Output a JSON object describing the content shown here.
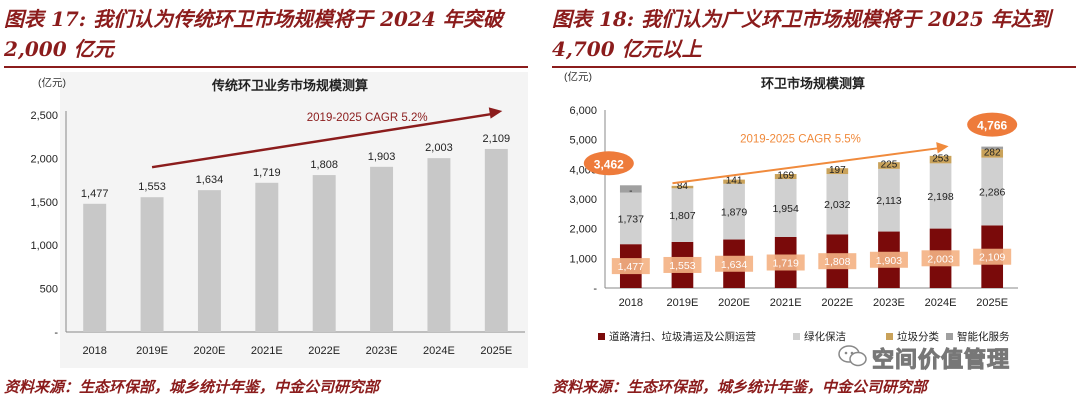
{
  "left": {
    "figure_title": "图表 17: 我们认为传统环卫市场规模将于 2024 年突破 2,000 亿元",
    "source": "资料来源：生态环保部，城乡统计年鉴，中金公司研究部"
  },
  "right": {
    "figure_title": "图表 18: 我们认为广义环卫市场规模将于 2025 年达到 4,700 亿元以上",
    "source": "资料来源：生态环保部，城乡统计年鉴，中金公司研究部"
  },
  "watermark": {
    "text": "空间价值管理"
  },
  "colors": {
    "title": "#8b1c1c",
    "bar_gray": "#c8c8c8",
    "dark_red": "#7a0a0a",
    "light_gray": "#d0d0d0",
    "tan": "#c9a25a",
    "mid_gray": "#a0a0a0",
    "arrow_red": "#8b1c1c",
    "arrow_orange": "#f08a3c",
    "label_orange": "#f4b183",
    "callout_orange": "#ee7b3b"
  },
  "chart_data": [
    {
      "type": "bar",
      "title": "传统环卫业务市场规模测算",
      "ylabel": "(亿元)",
      "categories": [
        "2018",
        "2019E",
        "2020E",
        "2021E",
        "2022E",
        "2023E",
        "2024E",
        "2025E"
      ],
      "values": [
        1477,
        1553,
        1634,
        1719,
        1808,
        1903,
        2003,
        2109
      ],
      "value_labels": [
        "1,477",
        "1,553",
        "1,634",
        "1,719",
        "1,808",
        "1,903",
        "2,003",
        "2,109"
      ],
      "ylim": [
        0,
        2500
      ],
      "yticks": [
        0,
        500,
        1000,
        1500,
        2000,
        2500
      ],
      "ytick_labels": [
        "-",
        "500",
        "1,000",
        "1,500",
        "2,000",
        "2,500"
      ],
      "annotation": "2019-2025 CAGR 5.2%",
      "arrow_from": [
        "2019E",
        1553
      ],
      "arrow_to": [
        "2025E",
        2109
      ],
      "grid": false
    },
    {
      "type": "bar",
      "stacked": true,
      "title": "环卫市场规模测算",
      "ylabel": "(亿元)",
      "categories": [
        "2018",
        "2019E",
        "2020E",
        "2021E",
        "2022E",
        "2023E",
        "2024E",
        "2025E"
      ],
      "series": [
        {
          "name": "道路清扫、垃圾清运及公厕运营",
          "values": [
            1477,
            1553,
            1634,
            1719,
            1808,
            1903,
            2003,
            2109
          ],
          "labels": [
            "1,477",
            "1,553",
            "1,634",
            "1,719",
            "1,808",
            "1,903",
            "2,003",
            "2,109"
          ]
        },
        {
          "name": "绿化保洁",
          "values": [
            1737,
            1807,
            1879,
            1954,
            2032,
            2113,
            2198,
            2286
          ],
          "labels": [
            "1,737",
            "1,807",
            "1,879",
            "1,954",
            "2,032",
            "2,113",
            "2,198",
            "2,286"
          ]
        },
        {
          "name": "垃圾分类",
          "values": [
            0,
            84,
            141,
            169,
            197,
            225,
            253,
            282
          ],
          "labels": [
            "-",
            "84",
            "141",
            "169",
            "197",
            "225",
            "253",
            "282"
          ]
        },
        {
          "name": "智能化服务",
          "values": [
            248,
            0,
            0,
            0,
            0,
            0,
            0,
            89
          ],
          "labels": [
            "",
            "",
            "",
            "",
            "",
            "",
            "",
            ""
          ]
        }
      ],
      "ylim": [
        0,
        6000
      ],
      "yticks": [
        0,
        1000,
        2000,
        3000,
        4000,
        5000,
        6000
      ],
      "ytick_labels": [
        "-",
        "1,000",
        "2,000",
        "3,000",
        "4,000",
        "5,000",
        "6,000"
      ],
      "callouts": [
        {
          "category": "2018",
          "text": "3,462"
        },
        {
          "category": "2025E",
          "text": "4,766"
        }
      ],
      "annotation": "2019-2025 CAGR 5.5%",
      "arrow_from": [
        "2019E",
        3530
      ],
      "arrow_to": [
        "2024E",
        4780
      ],
      "legend_position": "bottom",
      "grid": false
    }
  ]
}
